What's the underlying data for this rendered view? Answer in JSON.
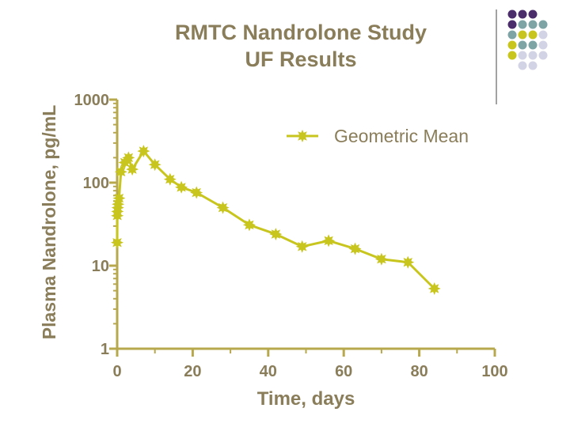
{
  "chart_data": {
    "type": "line",
    "title": "RMTC Nandrolone Study",
    "subtitle": "UF Results",
    "xlabel": "Time, days",
    "ylabel": "Plasma Nandrolone, pg/mL",
    "xlim": [
      0,
      100
    ],
    "ylim": [
      1,
      1000
    ],
    "yscale": "log",
    "x_ticks": [
      0,
      20,
      40,
      60,
      80,
      100
    ],
    "y_ticks": [
      1,
      10,
      100,
      1000
    ],
    "legend_position": "top-right",
    "series": [
      {
        "name": "Geometric Mean",
        "x": [
          0,
          0.04,
          0.08,
          0.17,
          0.25,
          0.5,
          1,
          2,
          3,
          4,
          7,
          10,
          14,
          17,
          21,
          28,
          35,
          42,
          49,
          56,
          63,
          70,
          77,
          84
        ],
        "y": [
          19,
          40,
          45,
          50,
          55,
          65,
          135,
          175,
          200,
          145,
          240,
          165,
          110,
          88,
          76,
          50,
          31,
          24,
          17,
          20,
          16,
          12,
          11,
          5.3
        ]
      }
    ]
  },
  "colors": {
    "series": "#c8c61e",
    "axis": "#b7a84e",
    "text": "#8a7d5a",
    "deco_purple": "#4b2d6b",
    "deco_teal": "#7ea4a6",
    "deco_yellow": "#c8c61e",
    "deco_gray": "#d3d3e6"
  }
}
